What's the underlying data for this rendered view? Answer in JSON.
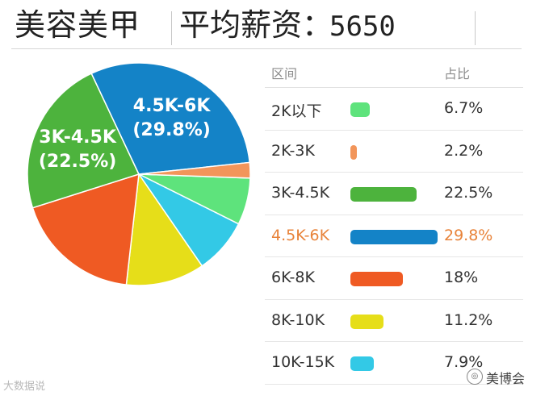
{
  "header": {
    "title": "美容美甲",
    "salary_label": "平均薪资：",
    "salary_value": "5650"
  },
  "table": {
    "col_interval": "区间",
    "col_share": "占比"
  },
  "watermark": {
    "left_text": "大数据说",
    "right_text": "美博会",
    "right_icon": "wechat-icon"
  },
  "chart_data": {
    "type": "pie",
    "highlight": "4.5K-6K",
    "categories": [
      "2K以下",
      "2K-3K",
      "3K-4.5K",
      "4.5K-6K",
      "6K-8K",
      "8K-10K",
      "10K-15K"
    ],
    "values": [
      6.7,
      2.2,
      22.5,
      29.8,
      18,
      11.2,
      7.9
    ],
    "value_labels": [
      "6.7%",
      "2.2%",
      "22.5%",
      "29.8%",
      "18%",
      "11.2%",
      "7.9%"
    ],
    "colors": [
      "#5ee37c",
      "#f2955a",
      "#4db33d",
      "#1483c7",
      "#ef5a23",
      "#e6de19",
      "#33c9e6"
    ],
    "slice_labels": [
      {
        "category": "4.5K-6K",
        "line1": "4.5K-6K",
        "line2": "(29.8%)"
      },
      {
        "category": "3K-4.5K",
        "line1": "3K-4.5K",
        "line2": "(22.5%)"
      }
    ]
  }
}
